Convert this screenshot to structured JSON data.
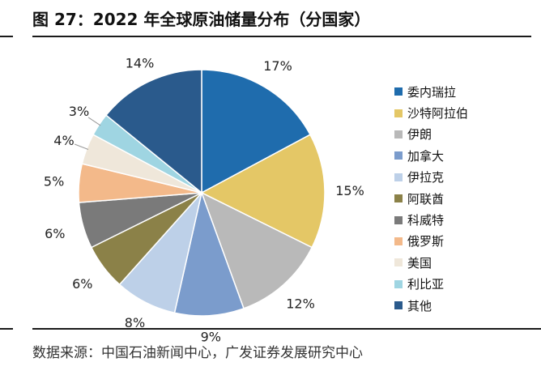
{
  "figure": {
    "title": "图 27：2022 年全球原油储量分布（分国家）",
    "source": "数据来源：中国石油新闻中心，广发证券发展研究中心"
  },
  "chart_data": {
    "type": "pie",
    "title": "图 27：2022 年全球原油储量分布（分国家）",
    "legend_position": "right",
    "slices": [
      {
        "label": "委内瑞拉",
        "value": 17,
        "display": "17%",
        "color": "#1f6cad"
      },
      {
        "label": "沙特阿拉伯",
        "value": 15,
        "display": "15%",
        "color": "#e4c766"
      },
      {
        "label": "伊朗",
        "value": 12,
        "display": "12%",
        "color": "#b9b9b9"
      },
      {
        "label": "加拿大",
        "value": 9,
        "display": "9%",
        "color": "#7b9ccc"
      },
      {
        "label": "伊拉克",
        "value": 8,
        "display": "8%",
        "color": "#bdd0e8"
      },
      {
        "label": "阿联酋",
        "value": 6,
        "display": "6%",
        "color": "#8b8148"
      },
      {
        "label": "科威特",
        "value": 6,
        "display": "6%",
        "color": "#7a7a7a"
      },
      {
        "label": "俄罗斯",
        "value": 5,
        "display": "5%",
        "color": "#f3b98a"
      },
      {
        "label": "美国",
        "value": 4,
        "display": "4%",
        "color": "#efe7da"
      },
      {
        "label": "利比亚",
        "value": 3,
        "display": "3%",
        "color": "#9fd5e2"
      },
      {
        "label": "其他",
        "value": 14,
        "display": "14%",
        "color": "#2a5a8c"
      }
    ]
  }
}
